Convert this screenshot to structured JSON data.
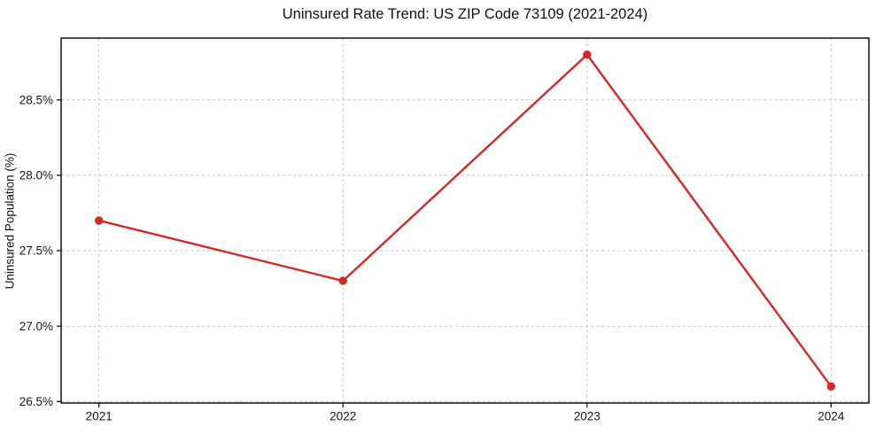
{
  "chart_data": {
    "type": "line",
    "title": "Uninsured Rate Trend: US ZIP Code 73109 (2021-2024)",
    "xlabel": "",
    "ylabel": "Uninsured Population (%)",
    "categories": [
      "2021",
      "2022",
      "2023",
      "2024"
    ],
    "values": [
      27.7,
      27.3,
      28.8,
      26.6
    ],
    "unit": "%",
    "ylim": [
      26.49,
      28.91
    ],
    "yticks": [
      26.5,
      27.0,
      27.5,
      28.0,
      28.5
    ],
    "ytick_labels": [
      "26.5%",
      "27.0%",
      "27.5%",
      "28.0%",
      "28.5%"
    ],
    "grid": true,
    "grid_style": "dashed",
    "legend": false,
    "marker": "circle",
    "colors": {
      "line": "#d62728",
      "marker": "#d62728",
      "grid": "#c8c8c8",
      "axis": "#000000",
      "text": "#151515"
    }
  }
}
